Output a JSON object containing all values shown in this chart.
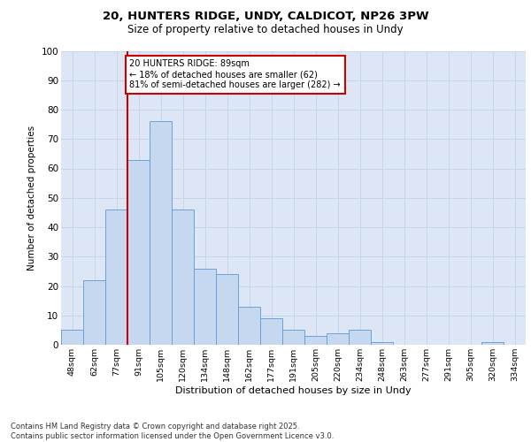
{
  "title1": "20, HUNTERS RIDGE, UNDY, CALDICOT, NP26 3PW",
  "title2": "Size of property relative to detached houses in Undy",
  "xlabel": "Distribution of detached houses by size in Undy",
  "ylabel": "Number of detached properties",
  "categories": [
    "48sqm",
    "62sqm",
    "77sqm",
    "91sqm",
    "105sqm",
    "120sqm",
    "134sqm",
    "148sqm",
    "162sqm",
    "177sqm",
    "191sqm",
    "205sqm",
    "220sqm",
    "234sqm",
    "248sqm",
    "263sqm",
    "277sqm",
    "291sqm",
    "305sqm",
    "320sqm",
    "334sqm"
  ],
  "values": [
    5,
    22,
    46,
    63,
    76,
    46,
    26,
    24,
    13,
    9,
    5,
    3,
    4,
    5,
    1,
    0,
    0,
    0,
    0,
    1,
    0
  ],
  "bar_color": "#c5d8f0",
  "bar_edge_color": "#5b9bd5",
  "grid_color": "#c8d4e8",
  "background_color": "#dce6f5",
  "vline_color": "#cc0000",
  "annotation_text": "20 HUNTERS RIDGE: 89sqm\n← 18% of detached houses are smaller (62)\n81% of semi-detached houses are larger (282) →",
  "annotation_box_color": "#ffffff",
  "annotation_box_edge": "#cc0000",
  "ylim": [
    0,
    100
  ],
  "yticks": [
    0,
    10,
    20,
    30,
    40,
    50,
    60,
    70,
    80,
    90,
    100
  ],
  "footer_line1": "Contains HM Land Registry data © Crown copyright and database right 2025.",
  "footer_line2": "Contains public sector information licensed under the Open Government Licence v3.0."
}
